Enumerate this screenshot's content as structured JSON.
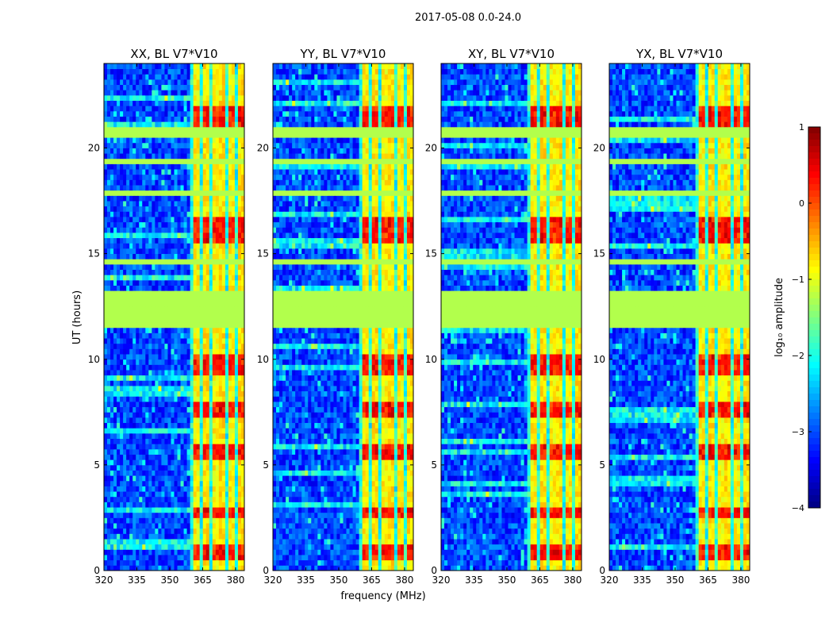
{
  "figure_title": "2017-05-08 0.0-24.0",
  "colors": {
    "axis": "#000000",
    "gap_fill": "#99ff55",
    "colormap": [
      "#00007f",
      "#0000ff",
      "#007fff",
      "#00ffff",
      "#7fff7f",
      "#ffff00",
      "#ff7f00",
      "#ff0000",
      "#7f0000"
    ]
  },
  "chart_data": {
    "type": "heatmap",
    "panels": [
      {
        "title": "XX, BL V7*V10",
        "pol": "XX"
      },
      {
        "title": "YY, BL V7*V10",
        "pol": "YY"
      },
      {
        "title": "XY, BL V7*V10",
        "pol": "XY"
      },
      {
        "title": "YX, BL V7*V10",
        "pol": "YX"
      }
    ],
    "xlabel": "frequency (MHz)",
    "ylabel": "UT (hours)",
    "xlim": [
      320,
      384
    ],
    "ylim": [
      0,
      24
    ],
    "xticks": [
      320,
      335,
      350,
      365,
      380
    ],
    "xtick_labels": [
      "320",
      "335",
      "350",
      "365",
      "380"
    ],
    "yticks": [
      0,
      5,
      10,
      15,
      20
    ],
    "ytick_labels": [
      "0",
      "5",
      "10",
      "15",
      "20"
    ],
    "strong_band_mhz": [
      360,
      384
    ],
    "flagged_ut_hours": [
      [
        11.6,
        13.3
      ],
      [
        20.6,
        21.0
      ],
      [
        17.7,
        17.9
      ],
      [
        14.5,
        14.7
      ],
      [
        19.2,
        19.4
      ]
    ],
    "bright_ut_hours": [
      [
        20.9,
        22.0
      ],
      [
        15.6,
        16.8
      ],
      [
        9.2,
        10.2
      ],
      [
        7.3,
        8.0
      ],
      [
        5.2,
        5.9
      ],
      [
        2.6,
        3.1
      ],
      [
        0.6,
        1.2
      ]
    ],
    "colorbar": {
      "label": "log₁₀ amplitude",
      "range": [
        -4,
        1
      ],
      "ticks": [
        1,
        0,
        -1,
        -2,
        -3,
        -4
      ],
      "tick_labels": [
        "1",
        "0",
        "−1",
        "−2",
        "−3",
        "−4"
      ]
    }
  }
}
